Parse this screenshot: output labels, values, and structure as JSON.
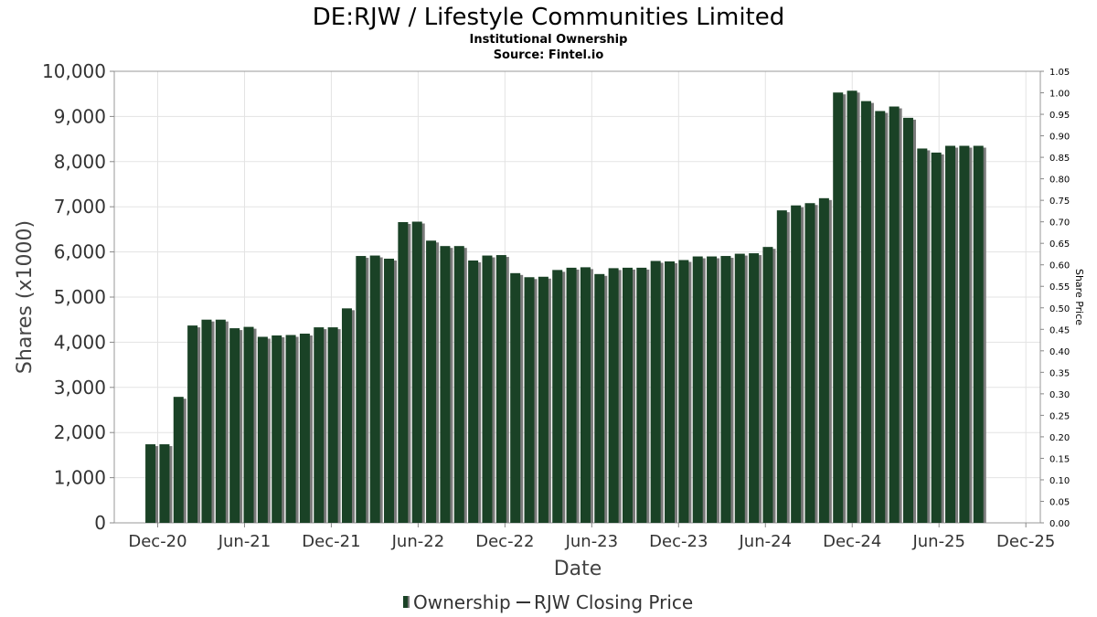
{
  "header": {
    "title": "DE:RJW / Lifestyle Communities Limited",
    "subtitle": "Institutional Ownership",
    "source": "Source: Fintel.io"
  },
  "legend": {
    "ownership_label": "Ownership",
    "price_label": "RJW Closing Price"
  },
  "colors": {
    "bar": "#1a4226",
    "bar_shadow": "#7a7a7a",
    "grid": "#e3e3e3",
    "axis": "#888888"
  },
  "chart_data": {
    "type": "bar",
    "title": "DE:RJW / Lifestyle Communities Limited",
    "xlabel": "Date",
    "ylabel": "Shares (x1000)",
    "y2label": "Share Price",
    "ylim": [
      0,
      10000
    ],
    "y2lim": [
      0,
      1.05
    ],
    "yticks": [
      "0",
      "1,000",
      "2,000",
      "3,000",
      "4,000",
      "5,000",
      "6,000",
      "7,000",
      "8,000",
      "9,000",
      "10,000"
    ],
    "y2ticks": [
      "0.00",
      "0.05",
      "0.10",
      "0.15",
      "0.20",
      "0.25",
      "0.30",
      "0.35",
      "0.40",
      "0.45",
      "0.50",
      "0.55",
      "0.60",
      "0.65",
      "0.70",
      "0.75",
      "0.80",
      "0.85",
      "0.90",
      "0.95",
      "1.00",
      "1.05"
    ],
    "xticks": [
      {
        "label": "Dec-20",
        "month": 3
      },
      {
        "label": "Jun-21",
        "month": 9
      },
      {
        "label": "Dec-21",
        "month": 15
      },
      {
        "label": "Jun-22",
        "month": 21
      },
      {
        "label": "Dec-22",
        "month": 27
      },
      {
        "label": "Jun-23",
        "month": 33
      },
      {
        "label": "Dec-23",
        "month": 39
      },
      {
        "label": "Jun-24",
        "month": 45
      },
      {
        "label": "Dec-24",
        "month": 51
      },
      {
        "label": "Jun-25",
        "month": 57
      },
      {
        "label": "Dec-25",
        "month": 63
      }
    ],
    "x_start": "Sep-20",
    "x_end": "Jan-26",
    "grid": true,
    "legend_position": "bottom",
    "series": [
      {
        "name": "Ownership",
        "values": [
          1740,
          1740,
          2790,
          4370,
          4500,
          4500,
          4310,
          4340,
          4120,
          4150,
          4160,
          4190,
          4330,
          4330,
          4750,
          5910,
          5920,
          5850,
          6660,
          6670,
          6250,
          6130,
          6130,
          5810,
          5920,
          5930,
          5530,
          5440,
          5450,
          5600,
          5650,
          5660,
          5510,
          5640,
          5650,
          5650,
          5800,
          5790,
          5820,
          5900,
          5900,
          5910,
          5960,
          5970,
          6110,
          6920,
          7030,
          7080,
          7190,
          9530,
          9570,
          9340,
          9120,
          9220,
          8970,
          8290,
          8200,
          8350,
          8350,
          8350
        ]
      }
    ]
  }
}
